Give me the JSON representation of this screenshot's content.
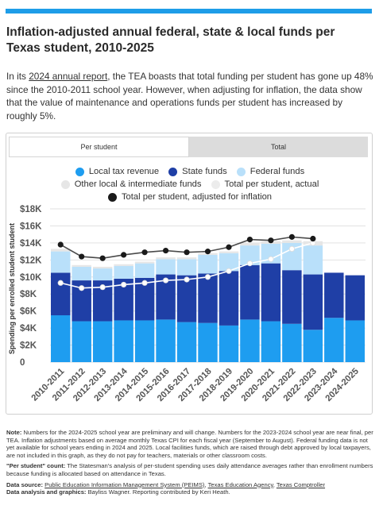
{
  "header": {
    "title": "Inflation-adjusted annual federal, state & local funds per Texas student, 2010-2025"
  },
  "intro": {
    "before_link": "In its ",
    "link": "2024 annual report",
    "after_link": ", the TEA boasts that total funding per student has gone up 48% since the 2010-2011 school year. However, when adjusting for inflation, the data show that the value of maintenance and operations funds per student has increased by roughly 5%."
  },
  "tabs": [
    {
      "label": "Per student",
      "active": true
    },
    {
      "label": "Total",
      "active": false
    }
  ],
  "colors": {
    "local": "#1e9df0",
    "state": "#1f3fa6",
    "federal": "#b9e0fa",
    "other": "#e6e6e6",
    "actual_line": "#ffffff",
    "adjusted_line": "#1a1a1a",
    "accent": "#1e9de8"
  },
  "chart_data": {
    "type": "bar",
    "stacked": true,
    "ylabel": "Spending per enrolled student student",
    "ylim": [
      0,
      18000
    ],
    "yticks": [
      "0",
      "$2K",
      "$4K",
      "$6K",
      "$8K",
      "$10K",
      "$12K",
      "$14K",
      "$16K",
      "$18K"
    ],
    "grid": true,
    "legend_position": "top",
    "categories": [
      "2010-2011",
      "2011-2012",
      "2012-2013",
      "2013-2014",
      "2014-2015",
      "2015-2016",
      "2016-2017",
      "2017-2018",
      "2018-2019",
      "2019-2020",
      "2020-2021",
      "2021-2022",
      "2022-2023",
      "2023-2024",
      "2024-2025"
    ],
    "series": [
      {
        "name": "Local tax revenue",
        "kind": "bar",
        "color_key": "local",
        "values": [
          5500,
          4800,
          4800,
          4900,
          4900,
          5000,
          4700,
          4600,
          4300,
          5000,
          4800,
          4500,
          3800,
          5200,
          4900
        ]
      },
      {
        "name": "State funds",
        "kind": "bar",
        "color_key": "state",
        "values": [
          5000,
          4800,
          4800,
          4900,
          5000,
          5300,
          5500,
          5800,
          6400,
          6400,
          6800,
          6300,
          6500,
          5300,
          5300
        ]
      },
      {
        "name": "Federal funds",
        "kind": "bar",
        "color_key": "federal",
        "values": [
          2500,
          1600,
          1400,
          1500,
          1700,
          1800,
          1900,
          2200,
          2100,
          2300,
          2300,
          3200,
          3400,
          0,
          0
        ]
      },
      {
        "name": "Other local & intermediate funds",
        "kind": "bar",
        "color_key": "other",
        "values": [
          300,
          200,
          200,
          200,
          200,
          200,
          200,
          200,
          200,
          300,
          300,
          300,
          500,
          0,
          0
        ]
      },
      {
        "name": "Total per student, actual",
        "kind": "line",
        "color_key": "actual_line",
        "values": [
          9300,
          8700,
          8800,
          9100,
          9300,
          9600,
          9700,
          10000,
          10700,
          11600,
          12100,
          13300,
          14000,
          null,
          null
        ]
      },
      {
        "name": "Total per student, adjusted for inflation",
        "kind": "line",
        "color_key": "adjusted_line",
        "values": [
          13800,
          12400,
          12200,
          12600,
          12900,
          13100,
          12900,
          13000,
          13500,
          14400,
          14300,
          14700,
          14500,
          null,
          null
        ]
      }
    ]
  },
  "notes": {
    "note_label": "Note:",
    "note_text": " Numbers for the 2024-2025 school year are preliminary and will change. Numbers for the 2023-2024 school year are near final, per TEA. Inflation adjustments based on average monthly Texas CPI for each fiscal year (September to August). Federal funding data is not yet available for school years ending in 2024 and 2025.  Local facilities funds, which are raised through debt approved by local taxpayers, are not included in this graph, as they do not pay for teachers, materials or other classroom costs.",
    "count_label": "\"Per student\" count:",
    "count_text": " The Statesman's analysis of per-student spending uses daily attendance averages rather than enrollment numbers because funding is allocated based on attendance in Texas.",
    "source_label": "Data source:",
    "source_link1": "Public Education Information Management System (PEIMS)",
    "source_sep1": ", ",
    "source_link2": "Texas Education Agency",
    "source_sep2": ", ",
    "source_link3": "Texas Comptroller",
    "analysis_label": "Data analysis and graphics:",
    "analysis_text": " Bayliss Wagner. Reporting contributed by Keri Heath."
  }
}
